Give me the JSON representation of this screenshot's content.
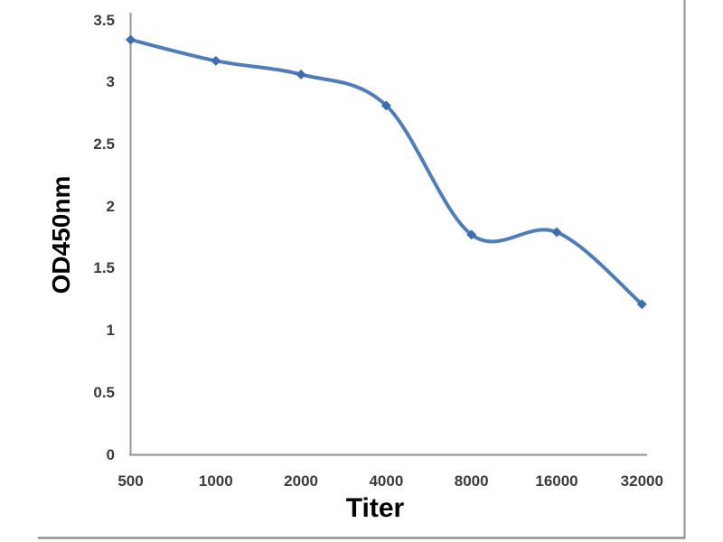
{
  "chart_data": {
    "type": "line",
    "title": "",
    "xlabel": "Titer",
    "ylabel": "OD450nm",
    "categories": [
      "500",
      "1000",
      "2000",
      "4000",
      "8000",
      "16000",
      "32000"
    ],
    "series": [
      {
        "name": "OD450nm",
        "values": [
          3.34,
          3.17,
          3.06,
          2.81,
          1.77,
          1.79,
          1.21
        ]
      }
    ],
    "y_tick_labels": [
      "3.5",
      "3",
      "2.5",
      "2",
      "1.5",
      "1",
      "0.5",
      "0"
    ],
    "ylim": [
      0,
      3.5
    ],
    "grid": false,
    "legend": "none",
    "smooth": true,
    "marker": "diamond",
    "colors": {
      "line": "#4e7dba",
      "marker": "#3d6eb0",
      "axis": "#9a9a9a",
      "tick_label": "#3c3c3c",
      "axis_title": "#000000",
      "frame_border": "#8f8f8f",
      "background": "#ffffff"
    }
  }
}
